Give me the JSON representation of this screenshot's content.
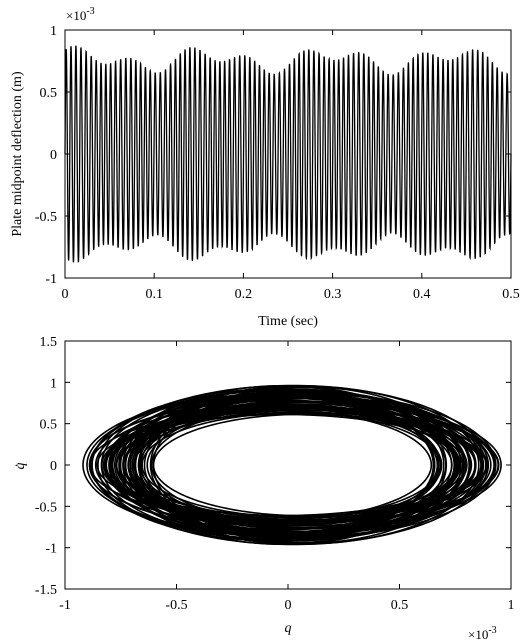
{
  "chart_data": [
    {
      "type": "line",
      "xlabel": "Time (sec)",
      "ylabel": "Plate midpoint deflection (m)",
      "y_exponent_label": "×10",
      "y_exponent_power": "-3",
      "xlim": [
        0,
        0.5
      ],
      "ylim": [
        -1,
        1
      ],
      "x_ticks": [
        "0",
        "0.1",
        "0.2",
        "0.3",
        "0.4",
        "0.5"
      ],
      "y_ticks": [
        "-1",
        "-0.5",
        "0",
        "0.5",
        "1"
      ],
      "grid": false,
      "series": [
        {
          "color": "#000000",
          "oscillation_frequency_hz": 180,
          "amplitude_range": [
            0.64,
            0.88
          ],
          "units_factor": 0.001
        }
      ]
    },
    {
      "type": "line",
      "xlabel": "q",
      "ylabel": "q̇",
      "x_exponent_label": "×10",
      "x_exponent_power": "-3",
      "xlim": [
        -1,
        1
      ],
      "ylim": [
        -1.5,
        1.5
      ],
      "x_ticks": [
        "-1",
        "-0.5",
        "0",
        "0.5",
        "1"
      ],
      "y_ticks": [
        "-1.5",
        "-1",
        "-0.5",
        "0",
        "0.5",
        "1",
        "1.5"
      ],
      "grid": false,
      "series": [
        {
          "color": "#000000",
          "orbit_center_q": 0.02,
          "orbit_q_amplitude_range": [
            0.64,
            0.88
          ],
          "orbit_qdot_amplitude_range": [
            0.55,
            0.98
          ]
        }
      ]
    }
  ]
}
